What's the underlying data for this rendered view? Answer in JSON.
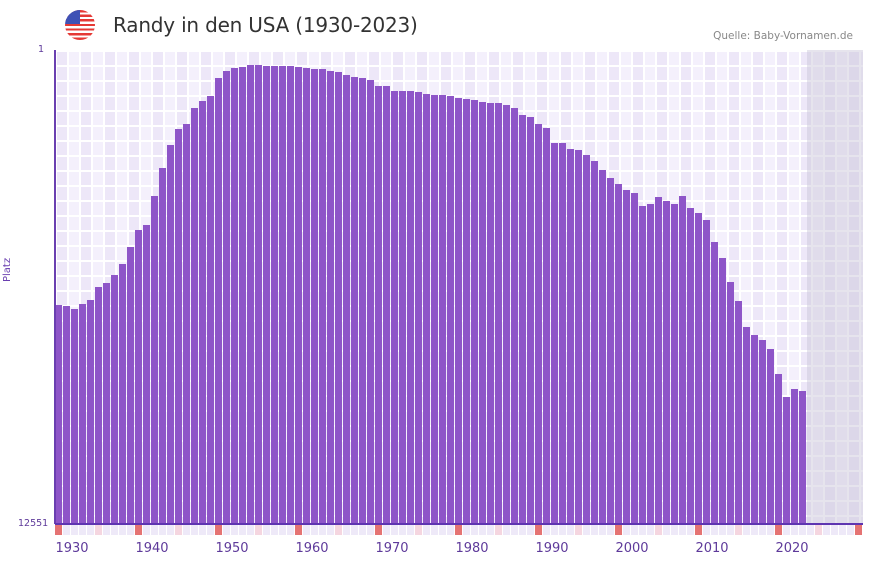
{
  "header": {
    "flag_icon": "us-flag-icon",
    "title": "Randy in den USA (1930-2023)",
    "source": "Quelle: Baby-Vornamen.de"
  },
  "colors": {
    "bar": "#8e55c8",
    "axis": "#5e35b1",
    "decade_marker": "#e57373",
    "half_decade_marker": "#f5d6e0",
    "grid_bg": "#f3effb"
  },
  "chart_data": {
    "type": "bar",
    "title": "Randy in den USA (1930-2023)",
    "xlabel": "",
    "ylabel": "Platz",
    "y_axis": {
      "top_label": "1",
      "bottom_label": "12551",
      "inverted": true,
      "note": "values are relative bar height (%) from bottom (rank 12551) to top (rank 1)"
    },
    "x_ticks": [
      "1930",
      "1940",
      "1950",
      "1960",
      "1970",
      "1980",
      "1990",
      "2000",
      "2010",
      "2020"
    ],
    "x_range": [
      1930,
      2030
    ],
    "grid": true,
    "legend": null,
    "categories": [
      1930,
      1931,
      1932,
      1933,
      1934,
      1935,
      1936,
      1937,
      1938,
      1939,
      1940,
      1941,
      1942,
      1943,
      1944,
      1945,
      1946,
      1947,
      1948,
      1949,
      1950,
      1951,
      1952,
      1953,
      1954,
      1955,
      1956,
      1957,
      1958,
      1959,
      1960,
      1961,
      1962,
      1963,
      1964,
      1965,
      1966,
      1967,
      1968,
      1969,
      1970,
      1971,
      1972,
      1973,
      1974,
      1975,
      1976,
      1977,
      1978,
      1979,
      1980,
      1981,
      1982,
      1983,
      1984,
      1985,
      1986,
      1987,
      1988,
      1989,
      1990,
      1991,
      1992,
      1993,
      1994,
      1995,
      1996,
      1997,
      1998,
      1999,
      2000,
      2001,
      2002,
      2003,
      2004,
      2005,
      2006,
      2007,
      2008,
      2009,
      2010,
      2011,
      2012,
      2013,
      2014,
      2015,
      2016,
      2017,
      2018,
      2019,
      2020,
      2021,
      2022,
      2023
    ],
    "values": [
      46.2,
      46.0,
      45.4,
      46.4,
      47.3,
      50.0,
      50.8,
      52.5,
      54.9,
      58.4,
      62.0,
      63.1,
      69.2,
      75.1,
      79.9,
      83.3,
      84.4,
      87.8,
      89.2,
      90.3,
      94.1,
      95.6,
      96.2,
      96.4,
      96.8,
      96.8,
      96.6,
      96.6,
      96.6,
      96.6,
      96.4,
      96.2,
      96.0,
      96.0,
      95.6,
      95.4,
      94.7,
      94.3,
      94.1,
      93.7,
      92.4,
      92.4,
      91.4,
      91.4,
      91.4,
      91.1,
      90.7,
      90.5,
      90.5,
      90.3,
      89.9,
      89.7,
      89.5,
      89.0,
      88.8,
      88.8,
      88.4,
      87.8,
      86.3,
      85.9,
      84.4,
      83.5,
      80.4,
      80.4,
      79.1,
      78.9,
      77.8,
      76.6,
      74.7,
      73.0,
      71.7,
      70.5,
      69.8,
      67.1,
      67.5,
      69.0,
      68.1,
      67.5,
      69.2,
      66.7,
      65.6,
      64.1,
      59.5,
      56.1,
      51.1,
      47.0,
      41.6,
      39.9,
      38.8,
      36.9,
      31.6,
      26.8,
      28.5,
      28.1
    ]
  }
}
